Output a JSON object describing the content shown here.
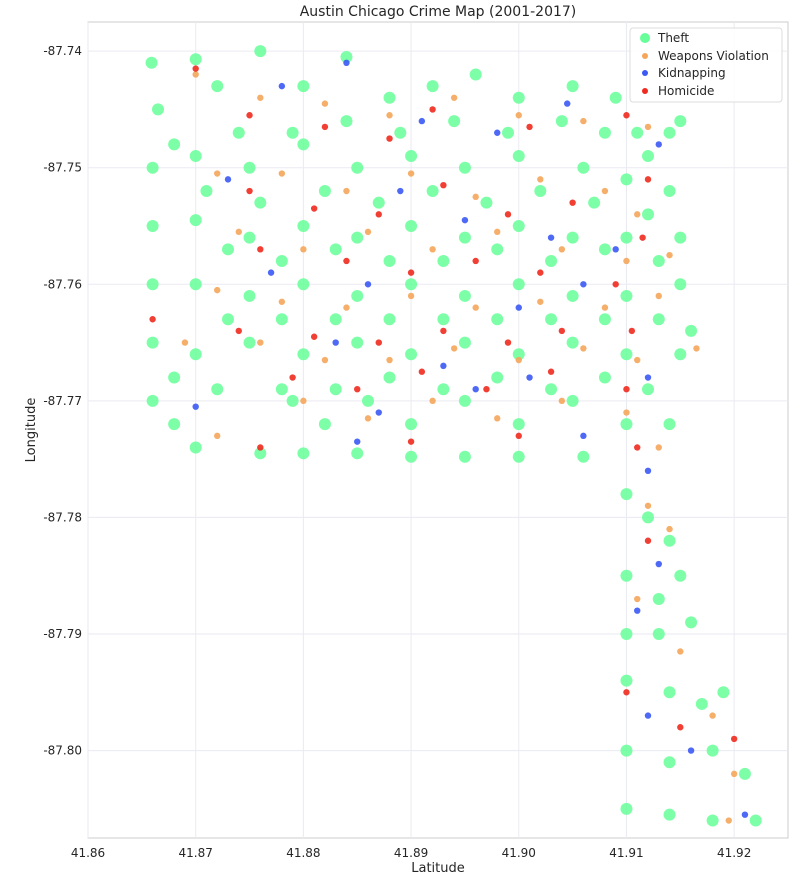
{
  "chart_data": {
    "type": "scatter",
    "title": "Austin Chicago Crime Map (2001-2017)",
    "xlabel": "Latitude",
    "ylabel": "Longitude",
    "xlim": [
      41.86,
      41.925
    ],
    "ylim": [
      -87.8075,
      -87.7375
    ],
    "y_inverted": true,
    "grid": true,
    "legend_position": "top-right",
    "x_ticks": [
      "41.86",
      "41.87",
      "41.88",
      "41.89",
      "41.90",
      "41.91",
      "41.92"
    ],
    "x_tick_values": [
      41.86,
      41.87,
      41.88,
      41.89,
      41.9,
      41.91,
      41.92
    ],
    "y_ticks": [
      "-87.74",
      "-87.75",
      "-87.76",
      "-87.77",
      "-87.78",
      "-87.79",
      "-87.80"
    ],
    "y_tick_values": [
      -87.74,
      -87.75,
      -87.76,
      -87.77,
      -87.78,
      -87.79,
      -87.8
    ],
    "series": [
      {
        "name": "Theft",
        "color": "#66ff99",
        "points": [
          [
            41.8659,
            -87.741
          ],
          [
            41.8665,
            -87.745
          ],
          [
            41.87,
            -87.7407
          ],
          [
            41.872,
            -87.743
          ],
          [
            41.876,
            -87.74
          ],
          [
            41.88,
            -87.743
          ],
          [
            41.884,
            -87.7405
          ],
          [
            41.888,
            -87.744
          ],
          [
            41.892,
            -87.743
          ],
          [
            41.896,
            -87.742
          ],
          [
            41.9,
            -87.744
          ],
          [
            41.905,
            -87.743
          ],
          [
            41.909,
            -87.744
          ],
          [
            41.911,
            -87.747
          ],
          [
            41.914,
            -87.747
          ],
          [
            41.915,
            -87.746
          ],
          [
            41.866,
            -87.75
          ],
          [
            41.87,
            -87.749
          ],
          [
            41.875,
            -87.75
          ],
          [
            41.88,
            -87.748
          ],
          [
            41.885,
            -87.75
          ],
          [
            41.89,
            -87.749
          ],
          [
            41.895,
            -87.75
          ],
          [
            41.9,
            -87.749
          ],
          [
            41.906,
            -87.75
          ],
          [
            41.91,
            -87.751
          ],
          [
            41.914,
            -87.752
          ],
          [
            41.866,
            -87.755
          ],
          [
            41.87,
            -87.7545
          ],
          [
            41.875,
            -87.756
          ],
          [
            41.88,
            -87.755
          ],
          [
            41.885,
            -87.756
          ],
          [
            41.89,
            -87.755
          ],
          [
            41.895,
            -87.756
          ],
          [
            41.9,
            -87.755
          ],
          [
            41.905,
            -87.756
          ],
          [
            41.91,
            -87.756
          ],
          [
            41.915,
            -87.756
          ],
          [
            41.866,
            -87.76
          ],
          [
            41.87,
            -87.76
          ],
          [
            41.875,
            -87.761
          ],
          [
            41.88,
            -87.76
          ],
          [
            41.885,
            -87.761
          ],
          [
            41.89,
            -87.76
          ],
          [
            41.895,
            -87.761
          ],
          [
            41.9,
            -87.76
          ],
          [
            41.905,
            -87.761
          ],
          [
            41.91,
            -87.761
          ],
          [
            41.915,
            -87.76
          ],
          [
            41.866,
            -87.765
          ],
          [
            41.87,
            -87.766
          ],
          [
            41.875,
            -87.765
          ],
          [
            41.88,
            -87.766
          ],
          [
            41.885,
            -87.765
          ],
          [
            41.89,
            -87.766
          ],
          [
            41.895,
            -87.765
          ],
          [
            41.9,
            -87.766
          ],
          [
            41.905,
            -87.765
          ],
          [
            41.91,
            -87.766
          ],
          [
            41.915,
            -87.766
          ],
          [
            41.866,
            -87.77
          ],
          [
            41.868,
            -87.772
          ],
          [
            41.87,
            -87.774
          ],
          [
            41.876,
            -87.7745
          ],
          [
            41.879,
            -87.77
          ],
          [
            41.882,
            -87.772
          ],
          [
            41.886,
            -87.77
          ],
          [
            41.89,
            -87.772
          ],
          [
            41.895,
            -87.77
          ],
          [
            41.9,
            -87.772
          ],
          [
            41.905,
            -87.77
          ],
          [
            41.91,
            -87.772
          ],
          [
            41.914,
            -87.772
          ],
          [
            41.88,
            -87.7745
          ],
          [
            41.885,
            -87.7745
          ],
          [
            41.89,
            -87.7748
          ],
          [
            41.895,
            -87.7748
          ],
          [
            41.9,
            -87.7748
          ],
          [
            41.906,
            -87.7748
          ],
          [
            41.91,
            -87.778
          ],
          [
            41.912,
            -87.78
          ],
          [
            41.914,
            -87.782
          ],
          [
            41.91,
            -87.785
          ],
          [
            41.913,
            -87.787
          ],
          [
            41.915,
            -87.785
          ],
          [
            41.91,
            -87.79
          ],
          [
            41.913,
            -87.79
          ],
          [
            41.916,
            -87.789
          ],
          [
            41.91,
            -87.794
          ],
          [
            41.914,
            -87.795
          ],
          [
            41.917,
            -87.796
          ],
          [
            41.919,
            -87.795
          ],
          [
            41.91,
            -87.8
          ],
          [
            41.914,
            -87.801
          ],
          [
            41.918,
            -87.8
          ],
          [
            41.921,
            -87.802
          ],
          [
            41.91,
            -87.805
          ],
          [
            41.914,
            -87.8055
          ],
          [
            41.918,
            -87.806
          ],
          [
            41.922,
            -87.806
          ],
          [
            41.868,
            -87.768
          ],
          [
            41.872,
            -87.769
          ],
          [
            41.878,
            -87.769
          ],
          [
            41.883,
            -87.769
          ],
          [
            41.888,
            -87.768
          ],
          [
            41.893,
            -87.769
          ],
          [
            41.898,
            -87.768
          ],
          [
            41.903,
            -87.769
          ],
          [
            41.908,
            -87.768
          ],
          [
            41.912,
            -87.769
          ],
          [
            41.871,
            -87.752
          ],
          [
            41.876,
            -87.753
          ],
          [
            41.882,
            -87.752
          ],
          [
            41.887,
            -87.753
          ],
          [
            41.892,
            -87.752
          ],
          [
            41.897,
            -87.753
          ],
          [
            41.902,
            -87.752
          ],
          [
            41.907,
            -87.753
          ],
          [
            41.912,
            -87.754
          ],
          [
            41.873,
            -87.757
          ],
          [
            41.878,
            -87.758
          ],
          [
            41.883,
            -87.757
          ],
          [
            41.888,
            -87.758
          ],
          [
            41.893,
            -87.758
          ],
          [
            41.898,
            -87.757
          ],
          [
            41.903,
            -87.758
          ],
          [
            41.908,
            -87.757
          ],
          [
            41.913,
            -87.758
          ],
          [
            41.873,
            -87.763
          ],
          [
            41.878,
            -87.763
          ],
          [
            41.883,
            -87.763
          ],
          [
            41.888,
            -87.763
          ],
          [
            41.893,
            -87.763
          ],
          [
            41.898,
            -87.763
          ],
          [
            41.903,
            -87.763
          ],
          [
            41.908,
            -87.763
          ],
          [
            41.913,
            -87.763
          ],
          [
            41.916,
            -87.764
          ],
          [
            41.868,
            -87.748
          ],
          [
            41.874,
            -87.747
          ],
          [
            41.879,
            -87.747
          ],
          [
            41.884,
            -87.746
          ],
          [
            41.889,
            -87.747
          ],
          [
            41.894,
            -87.746
          ],
          [
            41.899,
            -87.747
          ],
          [
            41.904,
            -87.746
          ],
          [
            41.908,
            -87.747
          ],
          [
            41.912,
            -87.749
          ]
        ]
      },
      {
        "name": "Weapons Violation",
        "color": "#f5a65b",
        "points": [
          [
            41.87,
            -87.742
          ],
          [
            41.876,
            -87.744
          ],
          [
            41.882,
            -87.7445
          ],
          [
            41.888,
            -87.7455
          ],
          [
            41.894,
            -87.744
          ],
          [
            41.9,
            -87.7455
          ],
          [
            41.906,
            -87.746
          ],
          [
            41.912,
            -87.7465
          ],
          [
            41.872,
            -87.7505
          ],
          [
            41.878,
            -87.7505
          ],
          [
            41.884,
            -87.752
          ],
          [
            41.89,
            -87.7505
          ],
          [
            41.896,
            -87.7525
          ],
          [
            41.902,
            -87.751
          ],
          [
            41.908,
            -87.752
          ],
          [
            41.911,
            -87.754
          ],
          [
            41.874,
            -87.7555
          ],
          [
            41.88,
            -87.757
          ],
          [
            41.886,
            -87.7555
          ],
          [
            41.892,
            -87.757
          ],
          [
            41.898,
            -87.7555
          ],
          [
            41.904,
            -87.757
          ],
          [
            41.91,
            -87.758
          ],
          [
            41.914,
            -87.7575
          ],
          [
            41.872,
            -87.7605
          ],
          [
            41.878,
            -87.7615
          ],
          [
            41.884,
            -87.762
          ],
          [
            41.89,
            -87.761
          ],
          [
            41.896,
            -87.762
          ],
          [
            41.902,
            -87.7615
          ],
          [
            41.908,
            -87.762
          ],
          [
            41.913,
            -87.761
          ],
          [
            41.876,
            -87.765
          ],
          [
            41.882,
            -87.7665
          ],
          [
            41.888,
            -87.7665
          ],
          [
            41.894,
            -87.7655
          ],
          [
            41.9,
            -87.7665
          ],
          [
            41.906,
            -87.7655
          ],
          [
            41.911,
            -87.7665
          ],
          [
            41.9165,
            -87.7655
          ],
          [
            41.88,
            -87.77
          ],
          [
            41.886,
            -87.7715
          ],
          [
            41.892,
            -87.77
          ],
          [
            41.898,
            -87.7715
          ],
          [
            41.904,
            -87.77
          ],
          [
            41.91,
            -87.771
          ],
          [
            41.913,
            -87.774
          ],
          [
            41.912,
            -87.779
          ],
          [
            41.914,
            -87.781
          ],
          [
            41.911,
            -87.787
          ],
          [
            41.915,
            -87.7915
          ],
          [
            41.918,
            -87.797
          ],
          [
            41.92,
            -87.802
          ],
          [
            41.9195,
            -87.806
          ],
          [
            41.872,
            -87.773
          ],
          [
            41.869,
            -87.765
          ]
        ]
      },
      {
        "name": "Kidnapping",
        "color": "#3b59f5",
        "points": [
          [
            41.878,
            -87.743
          ],
          [
            41.884,
            -87.741
          ],
          [
            41.891,
            -87.746
          ],
          [
            41.898,
            -87.747
          ],
          [
            41.9045,
            -87.7445
          ],
          [
            41.913,
            -87.748
          ],
          [
            41.873,
            -87.751
          ],
          [
            41.889,
            -87.752
          ],
          [
            41.895,
            -87.7545
          ],
          [
            41.903,
            -87.756
          ],
          [
            41.909,
            -87.757
          ],
          [
            41.877,
            -87.759
          ],
          [
            41.886,
            -87.76
          ],
          [
            41.9,
            -87.762
          ],
          [
            41.906,
            -87.76
          ],
          [
            41.883,
            -87.765
          ],
          [
            41.893,
            -87.767
          ],
          [
            41.901,
            -87.768
          ],
          [
            41.912,
            -87.768
          ],
          [
            41.87,
            -87.7705
          ],
          [
            41.887,
            -87.771
          ],
          [
            41.896,
            -87.769
          ],
          [
            41.906,
            -87.773
          ],
          [
            41.912,
            -87.776
          ],
          [
            41.913,
            -87.784
          ],
          [
            41.911,
            -87.788
          ],
          [
            41.912,
            -87.797
          ],
          [
            41.916,
            -87.8
          ],
          [
            41.921,
            -87.8055
          ],
          [
            41.885,
            -87.7735
          ]
        ]
      },
      {
        "name": "Homicide",
        "color": "#ef2a1e",
        "points": [
          [
            41.87,
            -87.7415
          ],
          [
            41.875,
            -87.7455
          ],
          [
            41.882,
            -87.7465
          ],
          [
            41.888,
            -87.7475
          ],
          [
            41.892,
            -87.745
          ],
          [
            41.901,
            -87.7465
          ],
          [
            41.91,
            -87.7455
          ],
          [
            41.912,
            -87.751
          ],
          [
            41.875,
            -87.752
          ],
          [
            41.881,
            -87.7535
          ],
          [
            41.887,
            -87.754
          ],
          [
            41.893,
            -87.7515
          ],
          [
            41.899,
            -87.754
          ],
          [
            41.905,
            -87.753
          ],
          [
            41.9115,
            -87.756
          ],
          [
            41.876,
            -87.757
          ],
          [
            41.884,
            -87.758
          ],
          [
            41.89,
            -87.759
          ],
          [
            41.896,
            -87.758
          ],
          [
            41.902,
            -87.759
          ],
          [
            41.909,
            -87.76
          ],
          [
            41.874,
            -87.764
          ],
          [
            41.881,
            -87.7645
          ],
          [
            41.887,
            -87.765
          ],
          [
            41.893,
            -87.764
          ],
          [
            41.899,
            -87.765
          ],
          [
            41.904,
            -87.764
          ],
          [
            41.9105,
            -87.764
          ],
          [
            41.879,
            -87.768
          ],
          [
            41.885,
            -87.769
          ],
          [
            41.891,
            -87.7675
          ],
          [
            41.897,
            -87.769
          ],
          [
            41.903,
            -87.7675
          ],
          [
            41.91,
            -87.769
          ],
          [
            41.876,
            -87.774
          ],
          [
            41.89,
            -87.7735
          ],
          [
            41.9,
            -87.773
          ],
          [
            41.911,
            -87.774
          ],
          [
            41.912,
            -87.782
          ],
          [
            41.91,
            -87.795
          ],
          [
            41.915,
            -87.798
          ],
          [
            41.92,
            -87.799
          ],
          [
            41.866,
            -87.763
          ]
        ]
      }
    ]
  }
}
